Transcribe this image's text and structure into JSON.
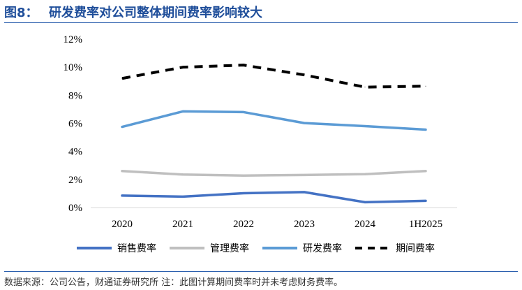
{
  "header": {
    "fig_label": "图8：",
    "title": "研发费率对公司整体期间费率影响较大"
  },
  "footer": {
    "source": "数据来源：公司公告，财通证券研究所  注：此图计算期间费率时并未考虑财务费率。"
  },
  "chart_data": {
    "type": "line",
    "title": "研发费率对公司整体期间费率影响较大",
    "xlabel": "",
    "ylabel": "",
    "categories": [
      "2020",
      "2021",
      "2022",
      "2023",
      "2024",
      "1H2025"
    ],
    "ylim": [
      0,
      12
    ],
    "yticks": [
      0,
      2,
      4,
      6,
      8,
      10,
      12
    ],
    "ytick_labels": [
      "0%",
      "2%",
      "4%",
      "6%",
      "8%",
      "10%",
      "12%"
    ],
    "grid": false,
    "legend_position": "bottom",
    "series": [
      {
        "name": "销售费率",
        "values": [
          0.85,
          0.78,
          1.02,
          1.1,
          0.38,
          0.48
        ],
        "color": "#4472c4",
        "style": "solid"
      },
      {
        "name": "管理费率",
        "values": [
          2.6,
          2.35,
          2.28,
          2.32,
          2.38,
          2.6
        ],
        "color": "#bfbfbf",
        "style": "solid"
      },
      {
        "name": "研发费率",
        "values": [
          5.75,
          6.85,
          6.8,
          6.02,
          5.8,
          5.55
        ],
        "color": "#5b9bd5",
        "style": "solid"
      },
      {
        "name": "期间费率",
        "values": [
          9.2,
          10.0,
          10.15,
          9.45,
          8.58,
          8.65
        ],
        "color": "#000000",
        "style": "dashed"
      }
    ]
  }
}
